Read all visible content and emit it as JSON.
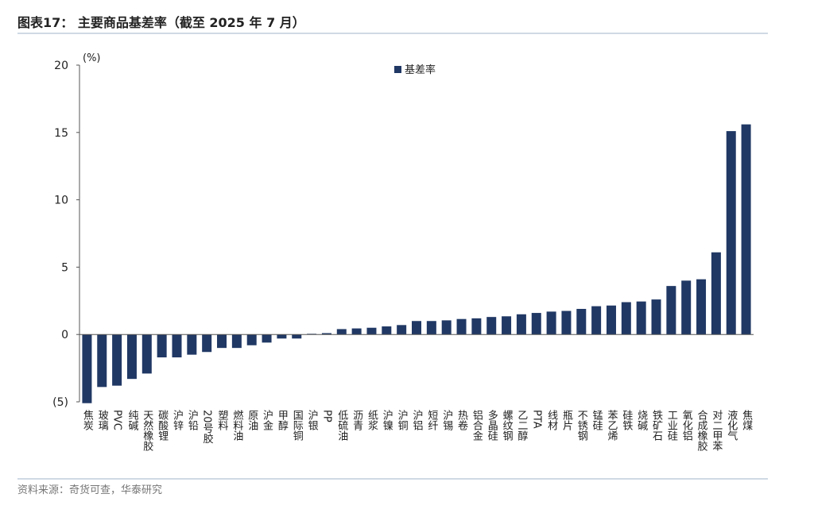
{
  "chart_data": {
    "type": "bar",
    "title": "图表17： 主要商品基差率（截至 2025 年 7 月）",
    "y_unit": "(%)",
    "source": "资料来源：奇货可查，华泰研究",
    "categories": [
      "焦炭",
      "玻璃",
      "PVC",
      "纯碱",
      "天然橡胶",
      "碳酸锂",
      "沪锌",
      "沪铅",
      "20号胶",
      "塑料",
      "燃料油",
      "原油",
      "沪金",
      "甲醇",
      "国际铜",
      "沪银",
      "PP",
      "低硫油",
      "沥青",
      "纸浆",
      "沪镍",
      "沪铜",
      "沪铝",
      "短纤",
      "沪锡",
      "热卷",
      "铝合金",
      "多晶硅",
      "螺纹钢",
      "乙二醇",
      "PTA",
      "线材",
      "瓶片",
      "不锈钢",
      "锰硅",
      "苯乙烯",
      "硅铁",
      "烧碱",
      "铁矿石",
      "工业硅",
      "氧化铝",
      "合成橡胶",
      "对二甲苯",
      "液化气",
      "焦煤"
    ],
    "series": [
      {
        "name": "基差率",
        "color": "#203864",
        "values": [
          -5.1,
          -3.9,
          -3.8,
          -3.3,
          -2.9,
          -1.7,
          -1.7,
          -1.5,
          -1.3,
          -1.0,
          -1.0,
          -0.8,
          -0.6,
          -0.3,
          -0.3,
          0.05,
          0.1,
          0.4,
          0.45,
          0.5,
          0.6,
          0.7,
          1.0,
          1.0,
          1.05,
          1.15,
          1.2,
          1.3,
          1.35,
          1.5,
          1.6,
          1.7,
          1.75,
          1.9,
          2.1,
          2.15,
          2.4,
          2.45,
          2.6,
          3.6,
          4.0,
          4.1,
          6.1,
          15.1,
          15.6
        ]
      }
    ],
    "ylim": [
      -5,
      20
    ],
    "yticks": [
      {
        "value": -5,
        "label": "(5)"
      },
      0,
      5,
      10,
      15,
      20
    ],
    "legend": "top"
  }
}
